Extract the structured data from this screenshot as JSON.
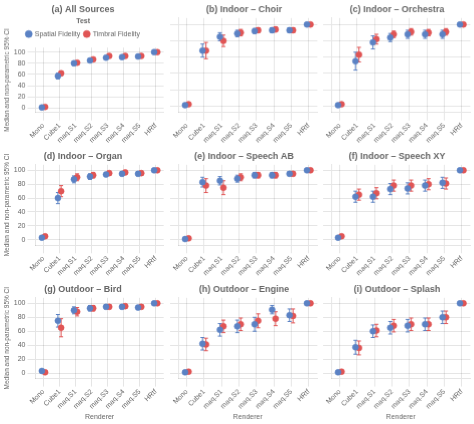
{
  "chart_data": [
    {
      "type": "scatter",
      "title": "(a) All Sources",
      "marker": "circle",
      "grid": true,
      "categories": [
        "Mono",
        "Cube1",
        "maq.S1",
        "maq.S2",
        "maq.S3",
        "maq.S4",
        "maq.S5",
        "HRtf"
      ],
      "series": [
        {
          "name": "Spatial Fidelity",
          "color": "#5B82C4",
          "values": [
            1,
            57,
            80,
            85,
            90,
            91,
            92,
            100
          ],
          "lo": [
            1,
            5,
            4,
            2,
            2,
            2,
            2,
            1
          ],
          "hi": [
            1,
            5,
            3,
            3,
            2,
            2,
            2,
            1
          ]
        },
        {
          "name": "Timbral Fidelity",
          "color": "#E05555",
          "values": [
            2,
            62,
            81,
            87,
            93,
            93,
            93,
            100
          ],
          "lo": [
            1,
            4,
            3,
            3,
            2,
            2,
            2,
            1
          ],
          "hi": [
            1,
            4,
            3,
            3,
            2,
            2,
            2,
            1
          ]
        }
      ],
      "ylim": [
        -8,
        108
      ],
      "yticks": [
        0,
        20,
        40,
        60,
        80,
        100
      ],
      "ylabel": "Median and non-parametric 95% CI",
      "legend": "top",
      "legend_title": "Test"
    },
    {
      "type": "scatter",
      "title": "(b) Indoor – Choir",
      "marker": "circle",
      "grid": true,
      "categories": [
        "Mono",
        "Cube1",
        "maq.S1",
        "maq.S2",
        "maq.S3",
        "maq.S4",
        "maq.S5",
        "HRtf"
      ],
      "series": [
        {
          "name": "Spatial Fidelity",
          "color": "#5B82C4",
          "values": [
            1,
            68,
            85,
            89,
            92,
            93,
            93,
            100
          ],
          "lo": [
            1,
            8,
            5,
            4,
            3,
            3,
            3,
            1
          ],
          "hi": [
            2,
            8,
            5,
            4,
            3,
            3,
            3,
            1
          ]
        },
        {
          "name": "Timbral Fidelity",
          "color": "#E05555",
          "values": [
            2,
            68,
            80,
            90,
            93,
            94,
            93,
            100
          ],
          "lo": [
            1,
            10,
            7,
            4,
            3,
            3,
            3,
            1
          ],
          "hi": [
            2,
            10,
            7,
            4,
            3,
            3,
            3,
            1
          ]
        }
      ],
      "ylim": [
        -8,
        108
      ],
      "yticks": [
        0,
        20,
        40,
        60,
        80,
        100
      ],
      "tick_labels": "x"
    },
    {
      "type": "scatter",
      "title": "(c) Indoor – Orchestra",
      "marker": "circle",
      "grid": true,
      "categories": [
        "Mono",
        "Cube1",
        "maq.S1",
        "maq.S2",
        "maq.S3",
        "maq.S4",
        "maq.S5",
        "HRtf"
      ],
      "series": [
        {
          "name": "Spatial Fidelity",
          "color": "#5B82C4",
          "values": [
            1,
            55,
            78,
            84,
            88,
            88,
            88,
            100
          ],
          "lo": [
            1,
            11,
            8,
            5,
            5,
            5,
            5,
            1
          ],
          "hi": [
            2,
            11,
            8,
            5,
            5,
            5,
            5,
            1
          ]
        },
        {
          "name": "Timbral Fidelity",
          "color": "#E05555",
          "values": [
            2,
            63,
            82,
            88,
            91,
            90,
            91,
            100
          ],
          "lo": [
            1,
            9,
            6,
            4,
            4,
            4,
            4,
            1
          ],
          "hi": [
            2,
            9,
            6,
            4,
            4,
            4,
            4,
            1
          ]
        }
      ],
      "ylim": [
        -8,
        108
      ],
      "yticks": [
        0,
        20,
        40,
        60,
        80,
        100
      ],
      "tick_labels": "x"
    },
    {
      "type": "scatter",
      "title": "(d) Indoor – Organ",
      "marker": "circle",
      "grid": true,
      "categories": [
        "Mono",
        "Cube1",
        "maq.S1",
        "maq.S2",
        "maq.S3",
        "maq.S4",
        "maq.S5",
        "HRtf"
      ],
      "series": [
        {
          "name": "Spatial Fidelity",
          "color": "#5B82C4",
          "values": [
            3,
            60,
            87,
            91,
            94,
            95,
            95,
            100
          ],
          "lo": [
            1,
            8,
            5,
            4,
            3,
            3,
            3,
            1
          ],
          "hi": [
            2,
            8,
            5,
            4,
            3,
            3,
            3,
            1
          ]
        },
        {
          "name": "Timbral Fidelity",
          "color": "#E05555",
          "values": [
            5,
            70,
            90,
            93,
            96,
            97,
            96,
            100
          ],
          "lo": [
            2,
            8,
            5,
            4,
            3,
            3,
            3,
            1
          ],
          "hi": [
            2,
            8,
            5,
            4,
            3,
            3,
            3,
            1
          ]
        }
      ],
      "ylim": [
        -8,
        108
      ],
      "yticks": [
        0,
        20,
        40,
        60,
        80,
        100
      ],
      "ylabel": "Median and non-parametric 95% CI"
    },
    {
      "type": "scatter",
      "title": "(e) Indoor – Speech AB",
      "marker": "circle",
      "grid": true,
      "categories": [
        "Mono",
        "Cube1",
        "maq.S1",
        "maq.S2",
        "maq.S3",
        "maq.S4",
        "maq.S5",
        "HRtf"
      ],
      "series": [
        {
          "name": "Spatial Fidelity",
          "color": "#5B82C4",
          "values": [
            1,
            83,
            85,
            88,
            93,
            93,
            95,
            100
          ],
          "lo": [
            1,
            7,
            6,
            5,
            4,
            4,
            3,
            1
          ],
          "hi": [
            1,
            7,
            6,
            5,
            4,
            4,
            3,
            1
          ]
        },
        {
          "name": "Timbral Fidelity",
          "color": "#E05555",
          "values": [
            2,
            78,
            75,
            90,
            93,
            93,
            95,
            100
          ],
          "lo": [
            1,
            10,
            10,
            5,
            4,
            4,
            3,
            1
          ],
          "hi": [
            2,
            10,
            10,
            5,
            4,
            4,
            3,
            1
          ]
        }
      ],
      "ylim": [
        -8,
        108
      ],
      "yticks": [
        0,
        20,
        40,
        60,
        80,
        100
      ],
      "tick_labels": "x"
    },
    {
      "type": "scatter",
      "title": "(f) Indoor – Speech XY",
      "marker": "circle",
      "grid": true,
      "categories": [
        "Mono",
        "Cube1",
        "maq.S1",
        "maq.S2",
        "maq.S3",
        "maq.S4",
        "maq.S5",
        "HRtf"
      ],
      "series": [
        {
          "name": "Spatial Fidelity",
          "color": "#5B82C4",
          "values": [
            3,
            62,
            62,
            73,
            74,
            78,
            82,
            100
          ],
          "lo": [
            1,
            8,
            8,
            8,
            8,
            8,
            8,
            1
          ],
          "hi": [
            2,
            8,
            8,
            8,
            8,
            8,
            8,
            1
          ]
        },
        {
          "name": "Timbral Fidelity",
          "color": "#E05555",
          "values": [
            5,
            65,
            67,
            78,
            78,
            80,
            81,
            100
          ],
          "lo": [
            2,
            8,
            8,
            8,
            8,
            8,
            8,
            1
          ],
          "hi": [
            2,
            8,
            8,
            8,
            8,
            8,
            8,
            1
          ]
        }
      ],
      "ylim": [
        -8,
        108
      ],
      "yticks": [
        0,
        20,
        40,
        60,
        80,
        100
      ],
      "tick_labels": "x"
    },
    {
      "type": "scatter",
      "title": "(g) Outdoor – Bird",
      "marker": "circle",
      "grid": true,
      "categories": [
        "Mono",
        "Cube1",
        "maq.S1",
        "maq.S2",
        "maq.S3",
        "maq.S4",
        "maq.S5",
        "HRtf"
      ],
      "series": [
        {
          "name": "Spatial Fidelity",
          "color": "#5B82C4",
          "values": [
            3,
            75,
            90,
            93,
            95,
            95,
            94,
            100
          ],
          "lo": [
            1,
            9,
            5,
            4,
            3,
            3,
            3,
            1
          ],
          "hi": [
            2,
            9,
            5,
            4,
            3,
            3,
            3,
            1
          ]
        },
        {
          "name": "Timbral Fidelity",
          "color": "#E05555",
          "values": [
            1,
            65,
            88,
            93,
            95,
            96,
            95,
            100
          ],
          "lo": [
            1,
            13,
            6,
            4,
            3,
            3,
            3,
            1
          ],
          "hi": [
            2,
            13,
            6,
            4,
            3,
            3,
            3,
            1
          ]
        }
      ],
      "ylim": [
        -8,
        108
      ],
      "yticks": [
        0,
        20,
        40,
        60,
        80,
        100
      ],
      "ylabel": "Median and non-parametric 95% CI",
      "xlabel": "Renderer"
    },
    {
      "type": "scatter",
      "title": "(h) Outdoor – Engine",
      "marker": "circle",
      "grid": true,
      "categories": [
        "Mono",
        "Cube1",
        "maq.S1",
        "maq.S2",
        "maq.S3",
        "maq.S4",
        "maq.S5",
        "HRtf"
      ],
      "series": [
        {
          "name": "Spatial Fidelity",
          "color": "#5B82C4",
          "values": [
            1,
            42,
            62,
            67,
            70,
            91,
            83,
            100
          ],
          "lo": [
            1,
            9,
            9,
            9,
            10,
            6,
            9,
            1
          ],
          "hi": [
            2,
            9,
            9,
            9,
            10,
            6,
            9,
            1
          ]
        },
        {
          "name": "Timbral Fidelity",
          "color": "#E05555",
          "values": [
            2,
            41,
            67,
            70,
            75,
            78,
            82,
            100
          ],
          "lo": [
            1,
            9,
            9,
            9,
            10,
            10,
            10,
            1
          ],
          "hi": [
            2,
            9,
            9,
            9,
            10,
            10,
            10,
            1
          ]
        }
      ],
      "ylim": [
        -8,
        108
      ],
      "yticks": [
        0,
        20,
        40,
        60,
        80,
        100
      ],
      "tick_labels": "x",
      "xlabel": "Renderer"
    },
    {
      "type": "scatter",
      "title": "(i) Outdoor – Splash",
      "marker": "circle",
      "grid": true,
      "categories": [
        "Mono",
        "Cube1",
        "maq.S1",
        "maq.S2",
        "maq.S3",
        "maq.S4",
        "maq.S5",
        "HRtf"
      ],
      "series": [
        {
          "name": "Spatial Fidelity",
          "color": "#5B82C4",
          "values": [
            1,
            37,
            60,
            65,
            68,
            70,
            80,
            100
          ],
          "lo": [
            1,
            10,
            9,
            9,
            9,
            9,
            9,
            1
          ],
          "hi": [
            2,
            10,
            9,
            9,
            9,
            9,
            9,
            1
          ]
        },
        {
          "name": "Timbral Fidelity",
          "color": "#E05555",
          "values": [
            2,
            36,
            61,
            68,
            70,
            70,
            80,
            100
          ],
          "lo": [
            1,
            10,
            9,
            9,
            9,
            9,
            9,
            1
          ],
          "hi": [
            2,
            10,
            9,
            9,
            9,
            9,
            9,
            1
          ]
        }
      ],
      "ylim": [
        -8,
        108
      ],
      "yticks": [
        0,
        20,
        40,
        60,
        80,
        100
      ],
      "tick_labels": "x",
      "xlabel": "Renderer"
    }
  ]
}
